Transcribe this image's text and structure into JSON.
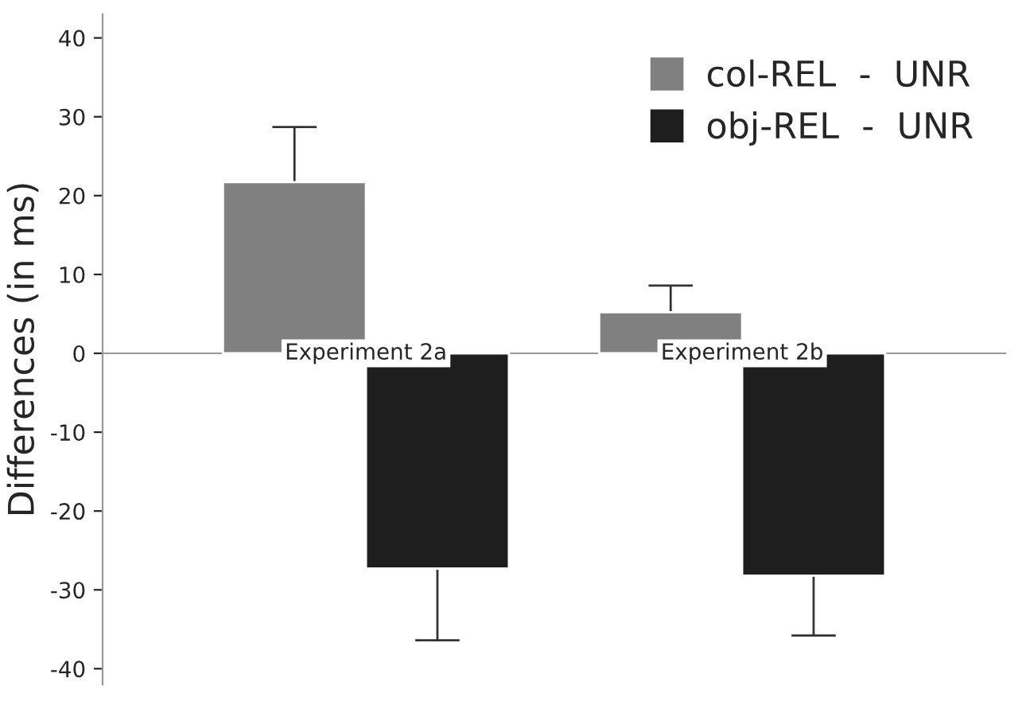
{
  "chart_data": {
    "type": "bar",
    "ylabel": "Differences (in ms)",
    "categories": [
      "Experiment 2a",
      "Experiment 2b"
    ],
    "series": [
      {
        "name": "col-REL  -  UNR",
        "color": "#808080",
        "values": [
          21.7,
          5.2
        ],
        "errors": [
          7.0,
          3.4
        ]
      },
      {
        "name": "obj-REL  -  UNR",
        "color": "#1e1e1e",
        "values": [
          -27.3,
          -28.2
        ],
        "errors": [
          9.1,
          7.6
        ]
      }
    ],
    "ylim": [
      -42,
      43
    ],
    "yticks": [
      -40,
      -30,
      -20,
      -10,
      0,
      10,
      20,
      30,
      40
    ],
    "legend": "top right",
    "grid": false
  }
}
